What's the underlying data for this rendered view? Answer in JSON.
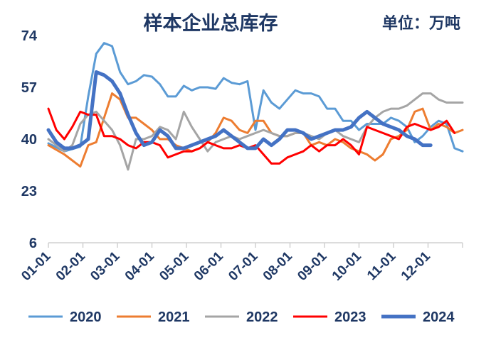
{
  "chart_data": {
    "type": "line",
    "title": "样本企业总库存",
    "unit_label": "单位：万吨",
    "xlabel": "",
    "ylabel": "",
    "ylim": [
      6,
      74
    ],
    "yticks": [
      6,
      23,
      40,
      57,
      74
    ],
    "x_categories": [
      "01-01",
      "02-01",
      "03-01",
      "04-01",
      "05-01",
      "06-01",
      "07-01",
      "08-01",
      "09-01",
      "10-01",
      "11-01",
      "12-01"
    ],
    "weeks_per_year": 52,
    "grid": false,
    "legend_position": "bottom",
    "text_color": "#1f3864",
    "series": [
      {
        "name": "2020",
        "color": "#5b9bd5",
        "width": 3,
        "values": [
          [
            0,
            38.6
          ],
          [
            2,
            36
          ],
          [
            4,
            37.5
          ],
          [
            5,
            54
          ],
          [
            6,
            68
          ],
          [
            7,
            71.5
          ],
          [
            8,
            70.5
          ],
          [
            9,
            62
          ],
          [
            10,
            58
          ],
          [
            11,
            59
          ],
          [
            12,
            61
          ],
          [
            13,
            60.5
          ],
          [
            14,
            58
          ],
          [
            15,
            54
          ],
          [
            16,
            54
          ],
          [
            17,
            57.5
          ],
          [
            18,
            56
          ],
          [
            19,
            57
          ],
          [
            20,
            57
          ],
          [
            21,
            56.5
          ],
          [
            22,
            60
          ],
          [
            23,
            58.5
          ],
          [
            24,
            58
          ],
          [
            25,
            59
          ],
          [
            26,
            43
          ],
          [
            27,
            56
          ],
          [
            28,
            52
          ],
          [
            29,
            50
          ],
          [
            30,
            53
          ],
          [
            31,
            56
          ],
          [
            32,
            55
          ],
          [
            33,
            55
          ],
          [
            34,
            54
          ],
          [
            35,
            50
          ],
          [
            36,
            50
          ],
          [
            37,
            46
          ],
          [
            38,
            46
          ],
          [
            39,
            43
          ],
          [
            40,
            45
          ],
          [
            41,
            45
          ],
          [
            42,
            45
          ],
          [
            43,
            47
          ],
          [
            44,
            46
          ],
          [
            45,
            44
          ],
          [
            46,
            39
          ],
          [
            47,
            41
          ],
          [
            48,
            44
          ],
          [
            49,
            46
          ],
          [
            50,
            45
          ],
          [
            51,
            37
          ],
          [
            52,
            36
          ]
        ]
      },
      {
        "name": "2021",
        "color": "#ed7d31",
        "width": 3,
        "values": [
          [
            0,
            38
          ],
          [
            2,
            35
          ],
          [
            4,
            31
          ],
          [
            5,
            38
          ],
          [
            6,
            39
          ],
          [
            7,
            47
          ],
          [
            8,
            55
          ],
          [
            9,
            53
          ],
          [
            10,
            47
          ],
          [
            11,
            47
          ],
          [
            12,
            45
          ],
          [
            13,
            43
          ],
          [
            14,
            40
          ],
          [
            15,
            40
          ],
          [
            16,
            38
          ],
          [
            17,
            37
          ],
          [
            18,
            36
          ],
          [
            19,
            37
          ],
          [
            20,
            39
          ],
          [
            21,
            42
          ],
          [
            22,
            47
          ],
          [
            23,
            46
          ],
          [
            24,
            43
          ],
          [
            25,
            42
          ],
          [
            26,
            46
          ],
          [
            27,
            46
          ],
          [
            28,
            42
          ],
          [
            29,
            41
          ],
          [
            30,
            41
          ],
          [
            31,
            42
          ],
          [
            32,
            42
          ],
          [
            33,
            38
          ],
          [
            34,
            39
          ],
          [
            35,
            38
          ],
          [
            36,
            40
          ],
          [
            37,
            39
          ],
          [
            38,
            37
          ],
          [
            39,
            36
          ],
          [
            40,
            35
          ],
          [
            41,
            33
          ],
          [
            42,
            35
          ],
          [
            43,
            40
          ],
          [
            44,
            41
          ],
          [
            45,
            43
          ],
          [
            46,
            49
          ],
          [
            47,
            50
          ],
          [
            48,
            43
          ],
          [
            49,
            45
          ],
          [
            50,
            44
          ],
          [
            51,
            42
          ],
          [
            52,
            43
          ]
        ]
      },
      {
        "name": "2022",
        "color": "#a5a5a5",
        "width": 3,
        "values": [
          [
            0,
            40
          ],
          [
            1,
            38
          ],
          [
            2,
            36
          ],
          [
            3,
            38
          ],
          [
            4,
            45
          ],
          [
            5,
            48
          ],
          [
            6,
            49
          ],
          [
            7,
            46
          ],
          [
            8,
            43
          ],
          [
            9,
            38
          ],
          [
            10,
            30
          ],
          [
            11,
            40
          ],
          [
            12,
            40
          ],
          [
            13,
            41
          ],
          [
            14,
            44
          ],
          [
            15,
            43
          ],
          [
            16,
            40
          ],
          [
            17,
            49
          ],
          [
            18,
            44
          ],
          [
            19,
            40
          ],
          [
            20,
            36
          ],
          [
            21,
            39
          ],
          [
            22,
            40
          ],
          [
            23,
            41
          ],
          [
            24,
            40
          ],
          [
            25,
            41
          ],
          [
            26,
            42
          ],
          [
            27,
            43
          ],
          [
            28,
            42
          ],
          [
            29,
            41
          ],
          [
            30,
            41
          ],
          [
            31,
            42
          ],
          [
            32,
            42
          ],
          [
            33,
            41
          ],
          [
            34,
            40
          ],
          [
            35,
            42
          ],
          [
            36,
            43
          ],
          [
            37,
            41
          ],
          [
            38,
            40
          ],
          [
            39,
            39
          ],
          [
            40,
            44
          ],
          [
            41,
            47
          ],
          [
            42,
            49
          ],
          [
            43,
            50
          ],
          [
            44,
            50
          ],
          [
            45,
            51
          ],
          [
            46,
            53
          ],
          [
            47,
            55
          ],
          [
            48,
            55
          ],
          [
            49,
            53
          ],
          [
            50,
            52
          ],
          [
            51,
            52
          ],
          [
            52,
            52
          ]
        ]
      },
      {
        "name": "2023",
        "color": "#ff0000",
        "width": 3,
        "values": [
          [
            0,
            50
          ],
          [
            1,
            43
          ],
          [
            2,
            40
          ],
          [
            3,
            44
          ],
          [
            4,
            49
          ],
          [
            5,
            48
          ],
          [
            6,
            48
          ],
          [
            7,
            41
          ],
          [
            8,
            41
          ],
          [
            9,
            40
          ],
          [
            10,
            38
          ],
          [
            11,
            37
          ],
          [
            12,
            39
          ],
          [
            13,
            39
          ],
          [
            14,
            38
          ],
          [
            15,
            34
          ],
          [
            16,
            35
          ],
          [
            17,
            36
          ],
          [
            18,
            36
          ],
          [
            19,
            37
          ],
          [
            20,
            39
          ],
          [
            21,
            38
          ],
          [
            22,
            37
          ],
          [
            23,
            37
          ],
          [
            24,
            38
          ],
          [
            25,
            37
          ],
          [
            26,
            38
          ],
          [
            27,
            35
          ],
          [
            28,
            32
          ],
          [
            29,
            32
          ],
          [
            30,
            34
          ],
          [
            31,
            35
          ],
          [
            32,
            36
          ],
          [
            33,
            38
          ],
          [
            34,
            36
          ],
          [
            35,
            38
          ],
          [
            36,
            38
          ],
          [
            37,
            40
          ],
          [
            38,
            38
          ],
          [
            39,
            35
          ],
          [
            40,
            44
          ],
          [
            41,
            43
          ],
          [
            42,
            42
          ],
          [
            43,
            41
          ],
          [
            44,
            40
          ],
          [
            45,
            44
          ],
          [
            46,
            45
          ],
          [
            47,
            44
          ],
          [
            48,
            43
          ],
          [
            49,
            44
          ],
          [
            50,
            46
          ],
          [
            51,
            42
          ]
        ]
      },
      {
        "name": "2024",
        "color": "#4472c4",
        "width": 5,
        "values": [
          [
            0,
            43
          ],
          [
            1,
            39
          ],
          [
            2,
            37
          ],
          [
            3,
            37
          ],
          [
            4,
            38
          ],
          [
            5,
            40
          ],
          [
            6,
            62
          ],
          [
            7,
            61
          ],
          [
            8,
            59
          ],
          [
            9,
            55
          ],
          [
            10,
            48
          ],
          [
            11,
            42
          ],
          [
            12,
            38
          ],
          [
            13,
            39
          ],
          [
            14,
            43
          ],
          [
            15,
            41
          ],
          [
            16,
            37
          ],
          [
            17,
            37
          ],
          [
            18,
            38
          ],
          [
            19,
            39
          ],
          [
            20,
            40
          ],
          [
            21,
            41
          ],
          [
            22,
            43
          ],
          [
            23,
            41
          ],
          [
            24,
            39
          ],
          [
            25,
            37
          ],
          [
            26,
            37
          ],
          [
            27,
            40
          ],
          [
            28,
            38
          ],
          [
            29,
            40
          ],
          [
            30,
            43
          ],
          [
            31,
            43
          ],
          [
            32,
            42
          ],
          [
            33,
            40
          ],
          [
            34,
            41
          ],
          [
            35,
            42
          ],
          [
            36,
            43
          ],
          [
            37,
            43
          ],
          [
            38,
            44
          ],
          [
            39,
            47
          ],
          [
            40,
            49
          ],
          [
            41,
            47
          ],
          [
            42,
            45
          ],
          [
            43,
            44
          ],
          [
            44,
            43
          ],
          [
            45,
            41
          ],
          [
            46,
            40
          ],
          [
            47,
            38
          ],
          [
            48,
            38
          ]
        ]
      }
    ]
  }
}
